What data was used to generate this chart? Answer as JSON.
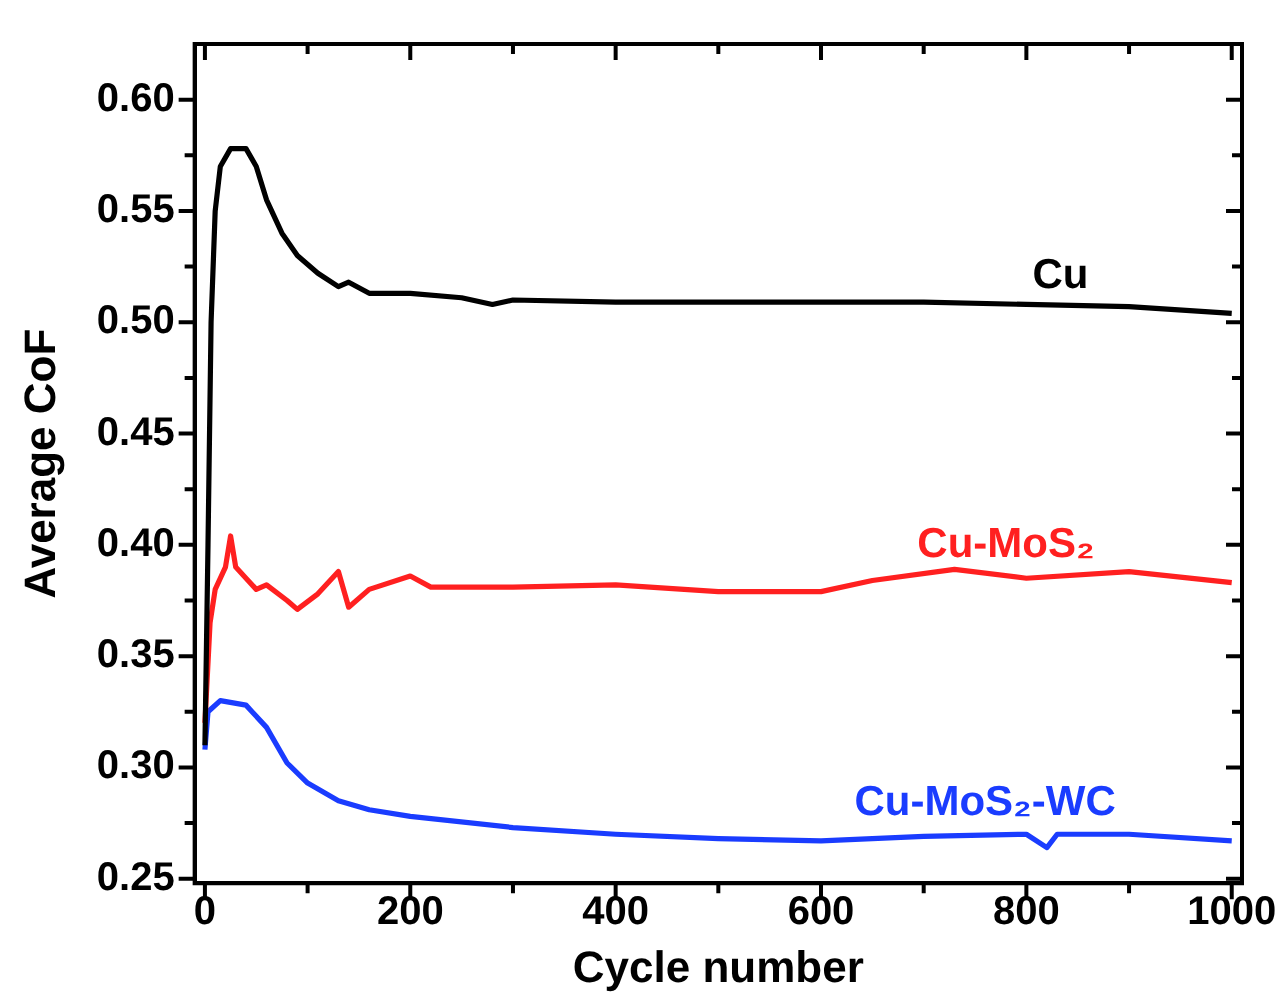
{
  "chart_data": {
    "type": "line",
    "xlabel": "Cycle number",
    "ylabel": "Average CoF",
    "xlim": [
      -10,
      1010
    ],
    "ylim": [
      0.248,
      0.625
    ],
    "xticks": [
      0,
      {
        "value": 100,
        "label": null
      },
      200,
      {
        "value": 300,
        "label": null
      },
      400,
      {
        "value": 500,
        "label": null
      },
      600,
      {
        "value": 700,
        "label": null
      },
      800,
      {
        "value": 900,
        "label": null
      },
      1000
    ],
    "yticks": [
      {
        "value": 0.25,
        "label": "0.25"
      },
      {
        "value": 0.275,
        "label": null
      },
      {
        "value": 0.3,
        "label": "0.30"
      },
      {
        "value": 0.325,
        "label": null
      },
      {
        "value": 0.35,
        "label": "0.35"
      },
      {
        "value": 0.375,
        "label": null
      },
      {
        "value": 0.4,
        "label": "0.40"
      },
      {
        "value": 0.425,
        "label": null
      },
      {
        "value": 0.45,
        "label": "0.45"
      },
      {
        "value": 0.475,
        "label": null
      },
      {
        "value": 0.5,
        "label": "0.50"
      },
      {
        "value": 0.525,
        "label": null
      },
      {
        "value": 0.55,
        "label": "0.55"
      },
      {
        "value": 0.575,
        "label": null
      },
      {
        "value": 0.6,
        "label": "0.60"
      }
    ],
    "grid": false,
    "legend": false,
    "marker": "none",
    "line_style": "solid",
    "series": [
      {
        "name": "Cu",
        "color": "#000000",
        "x": [
          0,
          3,
          6,
          10,
          15,
          25,
          40,
          50,
          60,
          75,
          90,
          110,
          130,
          140,
          160,
          200,
          250,
          280,
          300,
          400,
          500,
          600,
          700,
          800,
          900,
          1000
        ],
        "values": [
          0.31,
          0.4,
          0.5,
          0.55,
          0.57,
          0.578,
          0.578,
          0.57,
          0.555,
          0.54,
          0.53,
          0.522,
          0.516,
          0.518,
          0.513,
          0.513,
          0.511,
          0.508,
          0.51,
          0.509,
          0.509,
          0.509,
          0.509,
          0.508,
          0.507,
          0.504
        ]
      },
      {
        "name": "Cu-MoS₂",
        "color": "#ff2020",
        "x": [
          0,
          5,
          10,
          20,
          25,
          30,
          40,
          50,
          60,
          80,
          90,
          110,
          130,
          140,
          160,
          200,
          220,
          300,
          400,
          500,
          600,
          650,
          730,
          800,
          900,
          1000
        ],
        "values": [
          0.32,
          0.365,
          0.38,
          0.39,
          0.404,
          0.39,
          0.385,
          0.38,
          0.382,
          0.375,
          0.371,
          0.378,
          0.388,
          0.372,
          0.38,
          0.386,
          0.381,
          0.381,
          0.382,
          0.379,
          0.379,
          0.384,
          0.389,
          0.385,
          0.388,
          0.383
        ]
      },
      {
        "name": "Cu-MoS₂-WC",
        "color": "#1a3cff",
        "x": [
          0,
          3,
          15,
          40,
          60,
          80,
          100,
          130,
          160,
          200,
          300,
          400,
          500,
          600,
          700,
          800,
          820,
          830,
          900,
          1000
        ],
        "values": [
          0.308,
          0.325,
          0.33,
          0.328,
          0.318,
          0.302,
          0.293,
          0.285,
          0.281,
          0.278,
          0.273,
          0.27,
          0.268,
          0.267,
          0.269,
          0.27,
          0.264,
          0.27,
          0.27,
          0.267
        ]
      }
    ]
  }
}
